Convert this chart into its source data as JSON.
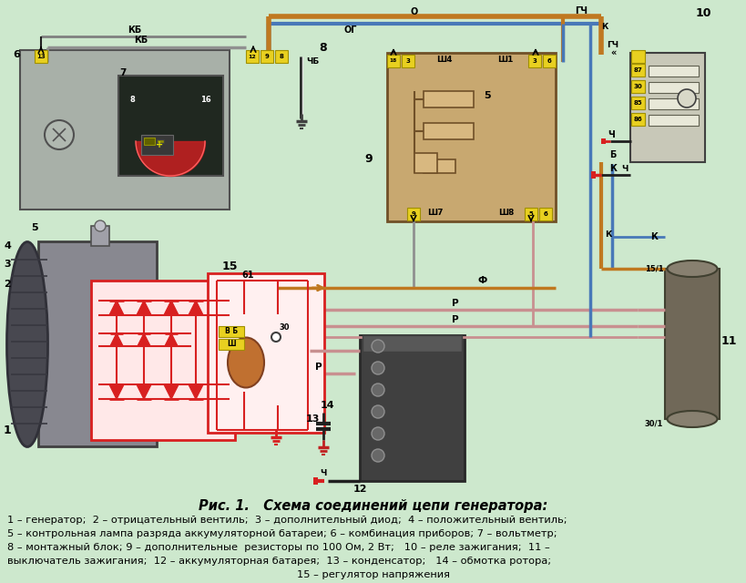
{
  "bg_color": "#cde8cd",
  "fig_width": 8.2,
  "fig_height": 6.4,
  "dpi": 100,
  "title_text": "Рис. 1.   Схема соединений цепи генератора:",
  "caption_lines": [
    "1 – генератор;  2 – отрицательный вентиль;  3 – дополнительный диод;  4 – положительный вентиль;",
    "5 – контрольная лампа разряда аккумуляторной батареи; 6 – комбинация приборов; 7 – вольтметр;",
    "8 – монтажный блок; 9 – дополнительные  резисторы по 100 Ом, 2 Вт;   10 – реле зажигания;  11 –",
    "выключатель зажигания;  12 – аккумуляторная батарея;  13 – конденсатор;   14 – обмотка ротора;",
    "15 – регулятор напряжения"
  ],
  "caption_fontsize": 8.2,
  "title_fontsize": 10.5,
  "wire_ob": "#c07820",
  "wire_blue": "#4878b8",
  "wire_pink": "#c89090",
  "wire_black": "#202020",
  "wire_gray": "#909090",
  "col_yellow": "#e8d020",
  "col_red": "#d82020",
  "col_tan": "#c8a870",
  "col_gray_comp": "#9098a0",
  "col_dark": "#404040",
  "col_relay": "#c8c8b8",
  "col_ignswitch": "#7a7a60"
}
